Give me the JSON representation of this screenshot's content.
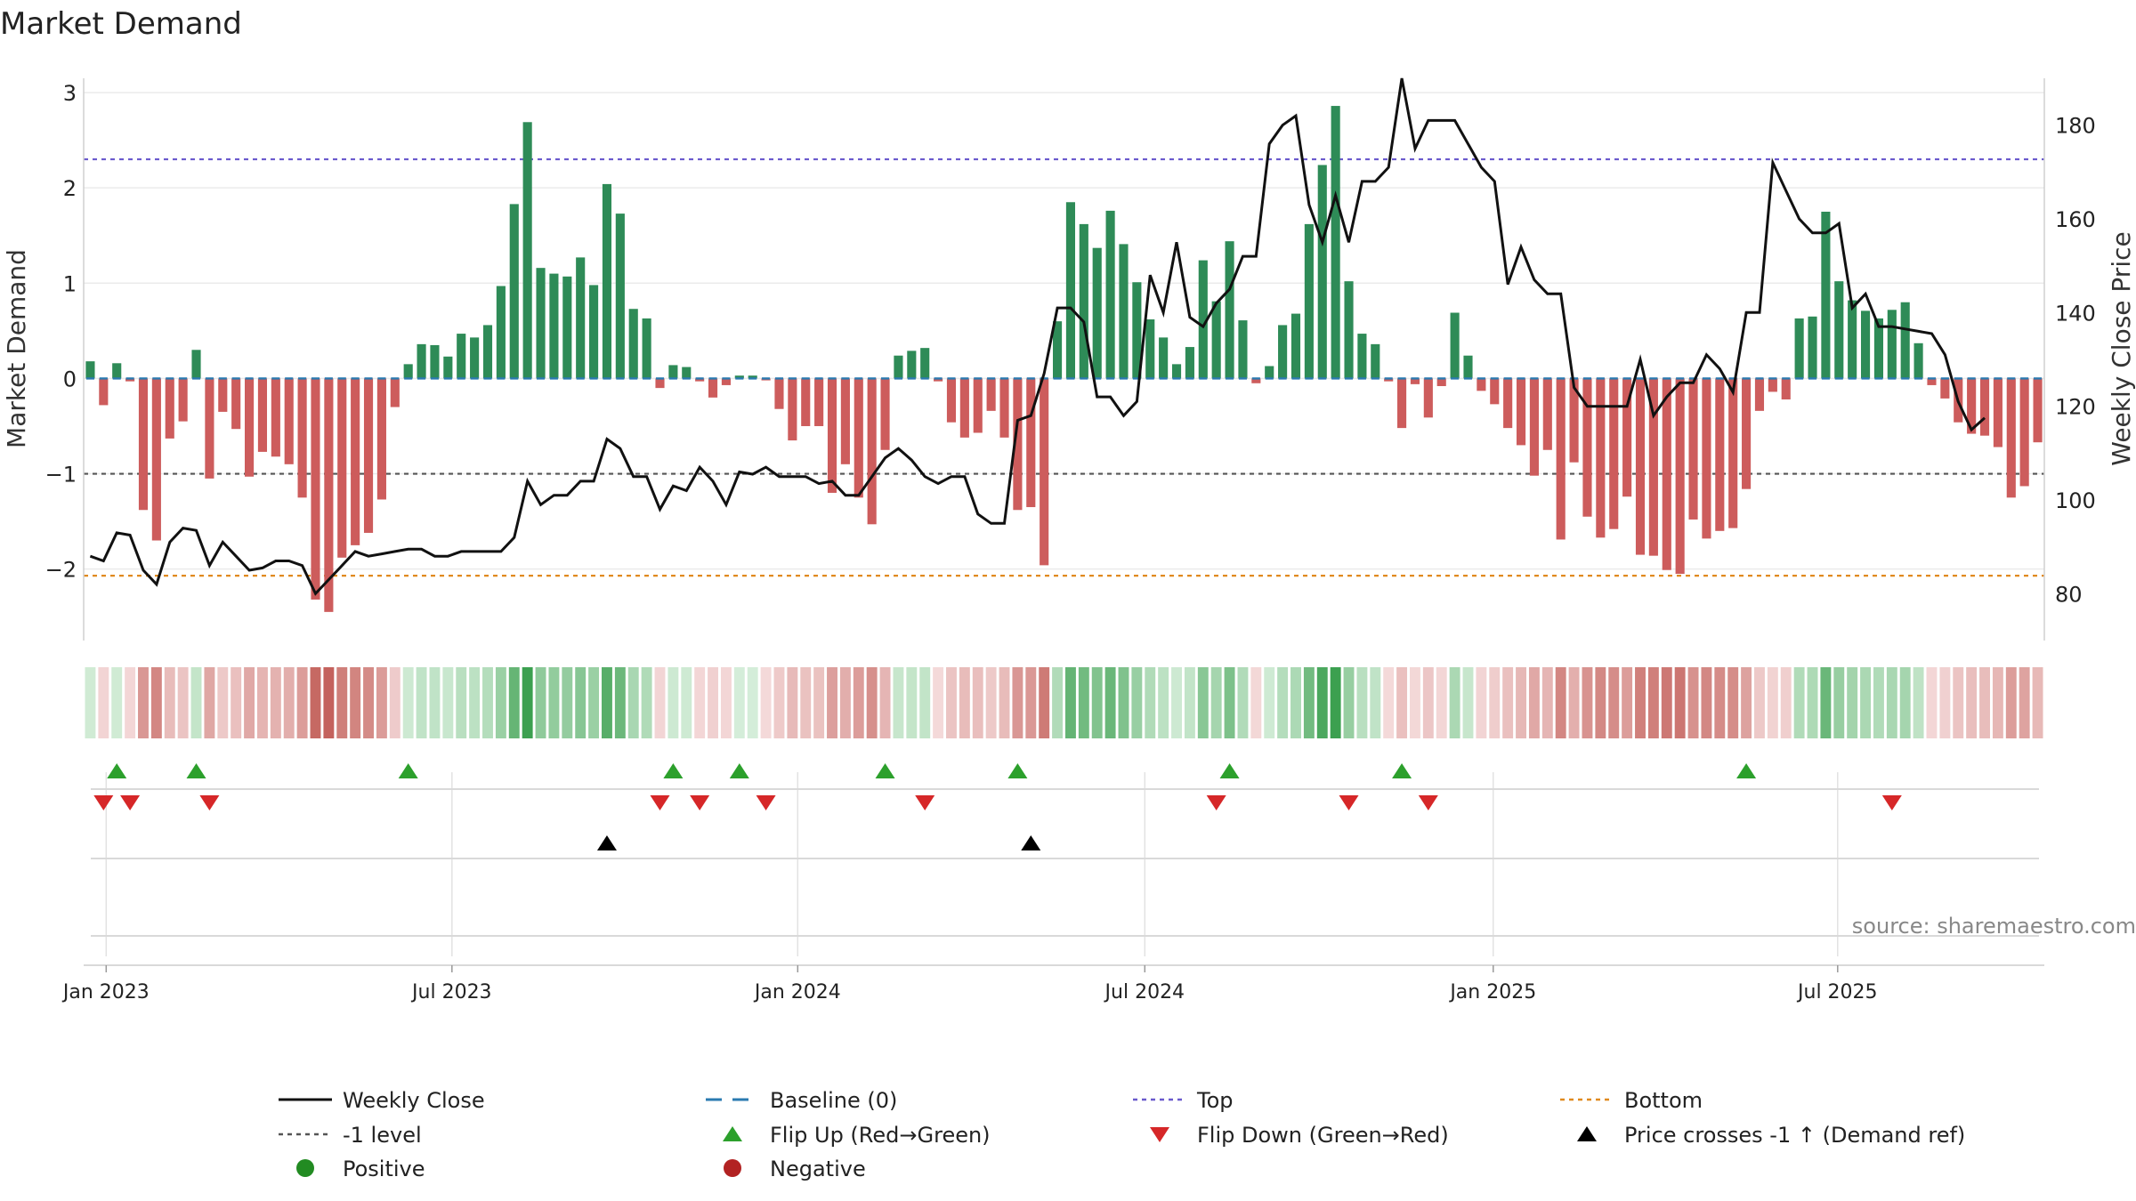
{
  "chart_data": {
    "type": "bar",
    "title": "Market Demand",
    "ylabel_left": "Market Demand",
    "ylabel_right": "Weekly Close Price",
    "source": "source: sharemaestro.com",
    "ylim_left": [
      -2.75,
      3.15
    ],
    "ylim_right": [
      70,
      190
    ],
    "left_ticks": [
      {
        "v": 3,
        "label": "3"
      },
      {
        "v": 2,
        "label": "2"
      },
      {
        "v": 1,
        "label": "1"
      },
      {
        "v": 0,
        "label": "0"
      },
      {
        "v": -1,
        "label": "−1"
      },
      {
        "v": -2,
        "label": "−2"
      }
    ],
    "right_ticks": [
      {
        "v": 180,
        "label": "180"
      },
      {
        "v": 160,
        "label": "160"
      },
      {
        "v": 140,
        "label": "140"
      },
      {
        "v": 120,
        "label": "120"
      },
      {
        "v": 100,
        "label": "100"
      },
      {
        "v": 80,
        "label": "80"
      }
    ],
    "x_ticks": [
      {
        "week": 1.2,
        "label": "Jan 2023"
      },
      {
        "week": 27.3,
        "label": "Jul 2023"
      },
      {
        "week": 53.4,
        "label": "Jan 2024"
      },
      {
        "week": 79.6,
        "label": "Jul 2024"
      },
      {
        "week": 105.9,
        "label": "Jan 2025"
      },
      {
        "week": 131.9,
        "label": "Jul 2025"
      }
    ],
    "reference_lines": {
      "top": 2.3,
      "bottom": -2.07,
      "minus_one": -1,
      "baseline": 0
    },
    "demand": [
      0.18,
      -0.28,
      0.16,
      -0.03,
      -1.38,
      -1.7,
      -0.63,
      -0.45,
      0.3,
      -1.05,
      -0.35,
      -0.53,
      -1.03,
      -0.77,
      -0.82,
      -0.9,
      -1.25,
      -2.32,
      -2.45,
      -1.88,
      -1.75,
      -1.62,
      -1.27,
      -0.3,
      0.15,
      0.36,
      0.35,
      0.23,
      0.47,
      0.43,
      0.56,
      0.97,
      1.83,
      2.69,
      1.16,
      1.1,
      1.07,
      1.27,
      0.98,
      2.04,
      1.73,
      0.73,
      0.63,
      -0.1,
      0.14,
      0.12,
      -0.03,
      -0.2,
      -0.07,
      0.03,
      0.03,
      -0.02,
      -0.32,
      -0.65,
      -0.5,
      -0.5,
      -1.2,
      -0.9,
      -1.25,
      -1.53,
      -0.75,
      0.24,
      0.29,
      0.32,
      -0.03,
      -0.46,
      -0.62,
      -0.57,
      -0.34,
      -0.62,
      -1.38,
      -1.35,
      -1.96,
      0.6,
      1.85,
      1.62,
      1.37,
      1.76,
      1.41,
      1.01,
      0.62,
      0.43,
      0.15,
      0.33,
      1.24,
      0.81,
      1.44,
      0.61,
      -0.05,
      0.13,
      0.56,
      0.68,
      1.62,
      2.24,
      2.86,
      1.02,
      0.47,
      0.36,
      -0.03,
      -0.52,
      -0.06,
      -0.41,
      -0.08,
      0.69,
      0.24,
      -0.13,
      -0.27,
      -0.52,
      -0.7,
      -1.02,
      -0.75,
      -1.69,
      -0.88,
      -1.45,
      -1.67,
      -1.58,
      -1.24,
      -1.85,
      -1.86,
      -2.01,
      -2.05,
      -1.48,
      -1.68,
      -1.6,
      -1.57,
      -1.16,
      -0.34,
      -0.14,
      -0.22,
      0.63,
      0.65,
      1.75,
      1.02,
      0.82,
      0.71,
      0.63,
      0.72,
      0.8,
      0.37,
      -0.07,
      -0.21,
      -0.46,
      -0.58,
      -0.6,
      -0.72,
      -1.25,
      -1.13,
      -0.67
    ],
    "price": [
      88,
      87,
      93,
      92.5,
      85,
      82,
      91,
      94,
      93.5,
      86,
      91,
      88,
      85,
      85.5,
      87,
      87,
      86,
      80,
      83,
      86,
      89,
      88,
      88.5,
      89,
      89.5,
      89.5,
      88,
      88,
      89,
      89,
      89,
      89,
      92,
      104,
      99,
      101,
      101,
      104,
      104,
      113,
      111,
      105,
      105,
      98,
      103,
      102,
      107,
      104,
      99,
      106,
      105.5,
      107,
      105,
      105,
      105,
      103.5,
      104,
      101,
      101,
      105,
      109,
      111,
      108.5,
      105,
      103.5,
      105,
      105,
      97,
      95,
      95,
      117,
      118,
      127,
      141,
      141,
      138,
      122,
      122,
      118,
      121,
      148,
      140,
      155,
      139,
      137,
      142,
      145,
      152,
      152,
      176,
      180,
      182,
      163,
      155,
      165,
      155,
      168,
      168,
      171,
      190,
      175,
      181,
      181,
      181,
      176,
      171,
      168,
      146,
      154,
      147,
      144,
      144,
      124,
      120,
      120,
      120,
      120,
      130,
      118,
      122,
      125,
      125,
      131,
      128,
      123,
      140,
      140,
      172,
      166,
      160,
      157,
      157,
      159,
      141,
      144,
      137,
      137,
      136.5,
      136,
      135.5,
      131,
      121,
      115,
      117.5
    ],
    "state_strip": [
      0.04,
      -0.05,
      0.04,
      -0.03,
      -0.55,
      -0.68,
      -0.25,
      -0.18,
      0.12,
      -0.42,
      -0.14,
      -0.21,
      -0.41,
      -0.31,
      -0.33,
      -0.36,
      -0.5,
      -0.93,
      -0.98,
      -0.75,
      -0.7,
      -0.65,
      -0.51,
      -0.12,
      0.06,
      0.14,
      0.14,
      0.09,
      0.19,
      0.17,
      0.22,
      0.39,
      0.73,
      1.0,
      0.46,
      0.44,
      0.43,
      0.51,
      0.39,
      0.82,
      0.69,
      0.29,
      0.25,
      -0.04,
      0.06,
      0.05,
      -0.03,
      -0.08,
      -0.03,
      0.01,
      0.01,
      -0.01,
      -0.13,
      -0.26,
      -0.2,
      -0.2,
      -0.48,
      -0.36,
      -0.5,
      -0.61,
      -0.3,
      0.1,
      0.12,
      0.13,
      -0.01,
      -0.18,
      -0.25,
      -0.23,
      -0.14,
      -0.25,
      -0.55,
      -0.54,
      -0.78,
      0.24,
      0.74,
      0.65,
      0.55,
      0.7,
      0.56,
      0.4,
      0.25,
      0.17,
      0.06,
      0.13,
      0.5,
      0.32,
      0.58,
      0.24,
      -0.02,
      0.05,
      0.22,
      0.27,
      0.65,
      0.9,
      1.0,
      0.41,
      0.19,
      0.14,
      -0.01,
      -0.21,
      -0.02,
      -0.16,
      -0.03,
      0.28,
      0.1,
      -0.05,
      -0.11,
      -0.21,
      -0.28,
      -0.41,
      -0.3,
      -0.68,
      -0.35,
      -0.58,
      -0.67,
      -0.63,
      -0.5,
      -0.74,
      -0.74,
      -0.8,
      -0.82,
      -0.59,
      -0.67,
      -0.64,
      -0.63,
      -0.46,
      -0.14,
      -0.06,
      -0.09,
      0.25,
      0.26,
      0.7,
      0.41,
      0.33,
      0.28,
      0.25,
      0.29,
      0.32,
      0.15,
      -0.03,
      -0.08,
      -0.18,
      -0.23,
      -0.24,
      -0.29,
      -0.5,
      -0.45,
      -0.27
    ],
    "flip_up_weeks": [
      2,
      8,
      24,
      44,
      49,
      60,
      70,
      86,
      99,
      125
    ],
    "flip_down_weeks": [
      1,
      3,
      9,
      43,
      46,
      51,
      63,
      85,
      95,
      101,
      136
    ],
    "price_cross_weeks": [
      39,
      71
    ],
    "legend": [
      {
        "key": "weekly_close",
        "label": "Weekly Close",
        "swatch": "line",
        "color": "#111111"
      },
      {
        "key": "baseline",
        "label": "Baseline (0)",
        "swatch": "dash",
        "color": "#2a7ab0"
      },
      {
        "key": "top",
        "label": "Top",
        "swatch": "dot",
        "color": "#6a5acd"
      },
      {
        "key": "bottom",
        "label": "Bottom",
        "swatch": "dot",
        "color": "#e08a1e"
      },
      {
        "key": "minus1",
        "label": "-1 level",
        "swatch": "dot",
        "color": "#555555"
      },
      {
        "key": "flip_up",
        "label": "Flip Up (Red→Green)",
        "swatch": "tri-up",
        "color": "#2ca02c"
      },
      {
        "key": "flip_down",
        "label": "Flip Down (Green→Red)",
        "swatch": "tri-down",
        "color": "#d62728"
      },
      {
        "key": "price_cross",
        "label": "Price crosses -1 ↑ (Demand ref)",
        "swatch": "tri-up",
        "color": "#000000"
      },
      {
        "key": "positive",
        "label": "Positive",
        "swatch": "circle",
        "color": "#228b22"
      },
      {
        "key": "negative",
        "label": "Negative",
        "swatch": "circle",
        "color": "#b22222"
      }
    ],
    "colors": {
      "positive_bar": "#2e8b57",
      "negative_bar": "#cd5c5c",
      "price_line": "#111111",
      "top_line": "#6a5acd",
      "bottom_line": "#e08a1e",
      "minus_one_line": "#555555",
      "baseline": "#2a7ab0",
      "flip_up": "#2ca02c",
      "flip_down": "#d62728",
      "price_cross": "#000000"
    }
  }
}
